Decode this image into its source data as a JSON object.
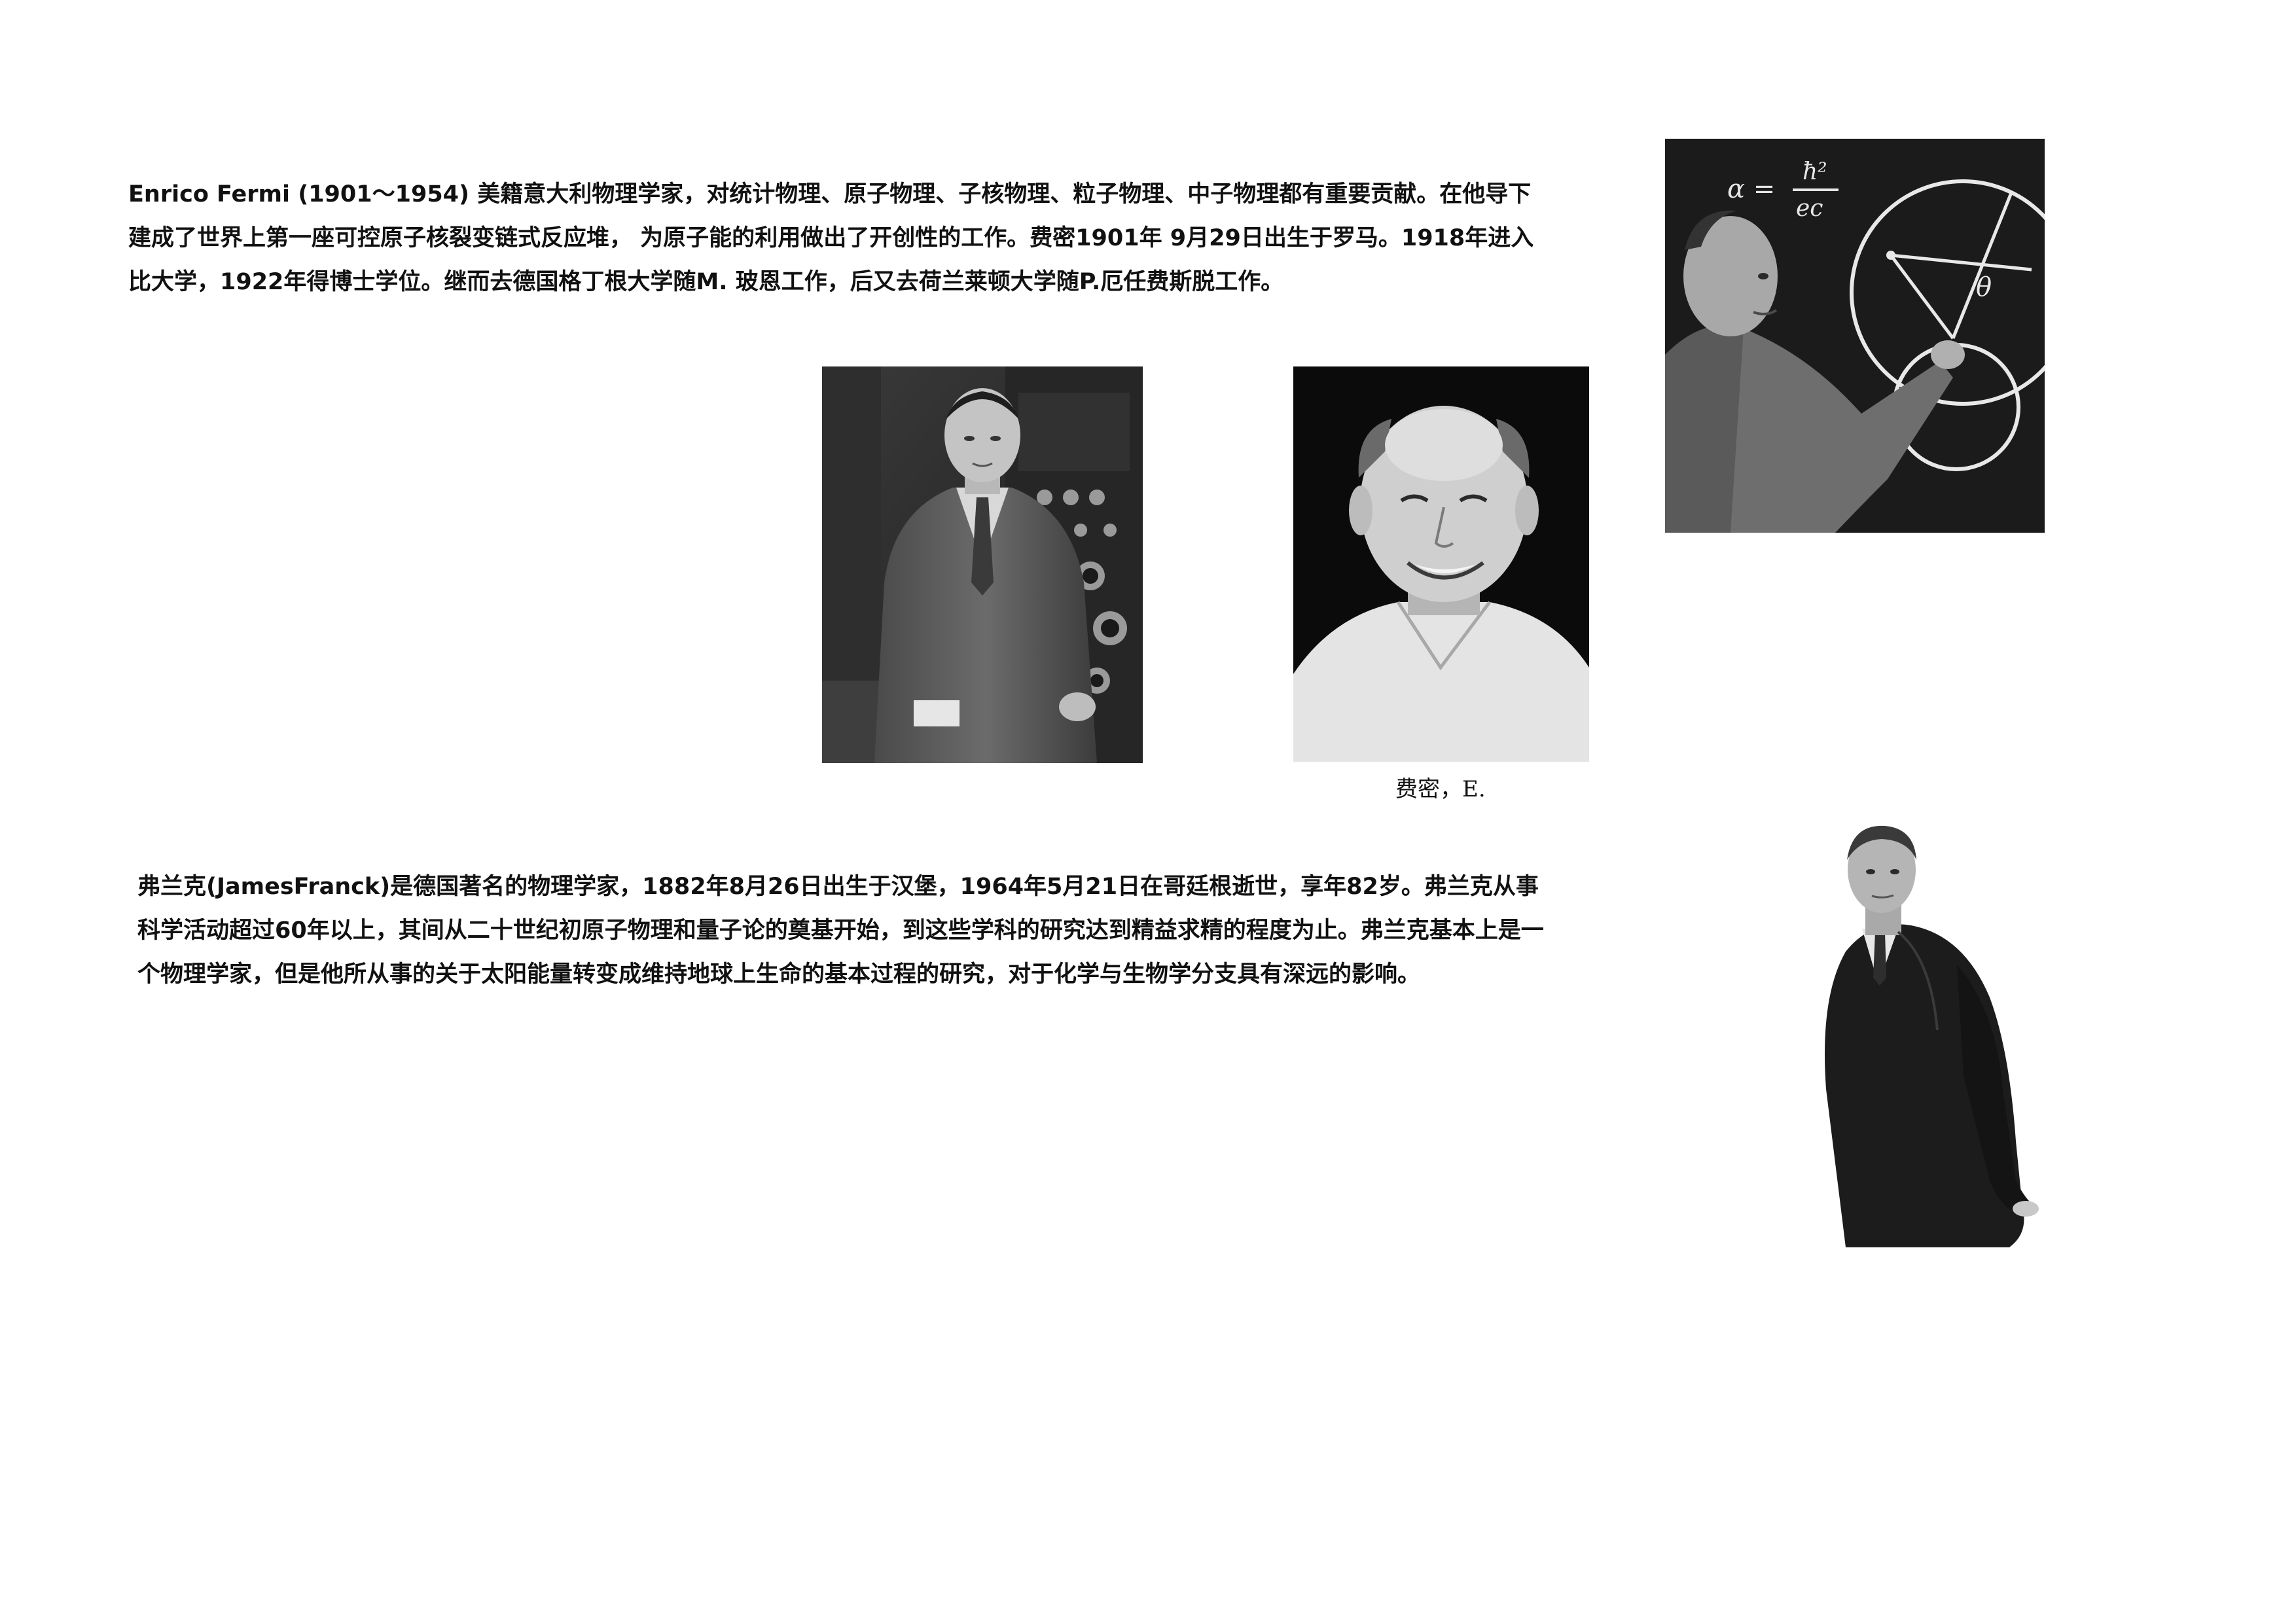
{
  "fermi": {
    "paragraph": "Enrico Fermi (1901～1954) 美籍意大利物理学家，对统计物理、原子物理、子核物理、粒子物理、中子物理都有重要贡献。在他导下建成了世界上第一座可控原子核裂变链式反应堆， 为原子能的利用做出了开创性的工作。费密1901年 9月29日出生于罗马。1918年进入比大学，1922年得博士学位。继而去德国格丁根大学随M. 玻恩工作，后又去荷兰莱顿大学随P.厄任费斯脱工作。",
    "portrait_caption": "费密，E."
  },
  "franck": {
    "paragraph": "弗兰克(JamesFranck)是德国著名的物理学家，1882年8月26日出生于汉堡，1964年5月21日在哥廷根逝世，享年82岁。弗兰克从事科学活动超过60年以上，其间从二十世纪初原子物理和量子论的奠基开始，到这些学科的研究达到精益求精的程度为止。弗兰克基本上是一个物理学家，但是他所从事的关于太阳能量转变成维持地球上生命的基本过程的研究，对于化学与生物学分支具有深远的影响。"
  },
  "chalkboard": {
    "formula_lhs": "α =",
    "formula_num": "ħ²",
    "formula_den": "ec",
    "angle_label": "θ"
  }
}
